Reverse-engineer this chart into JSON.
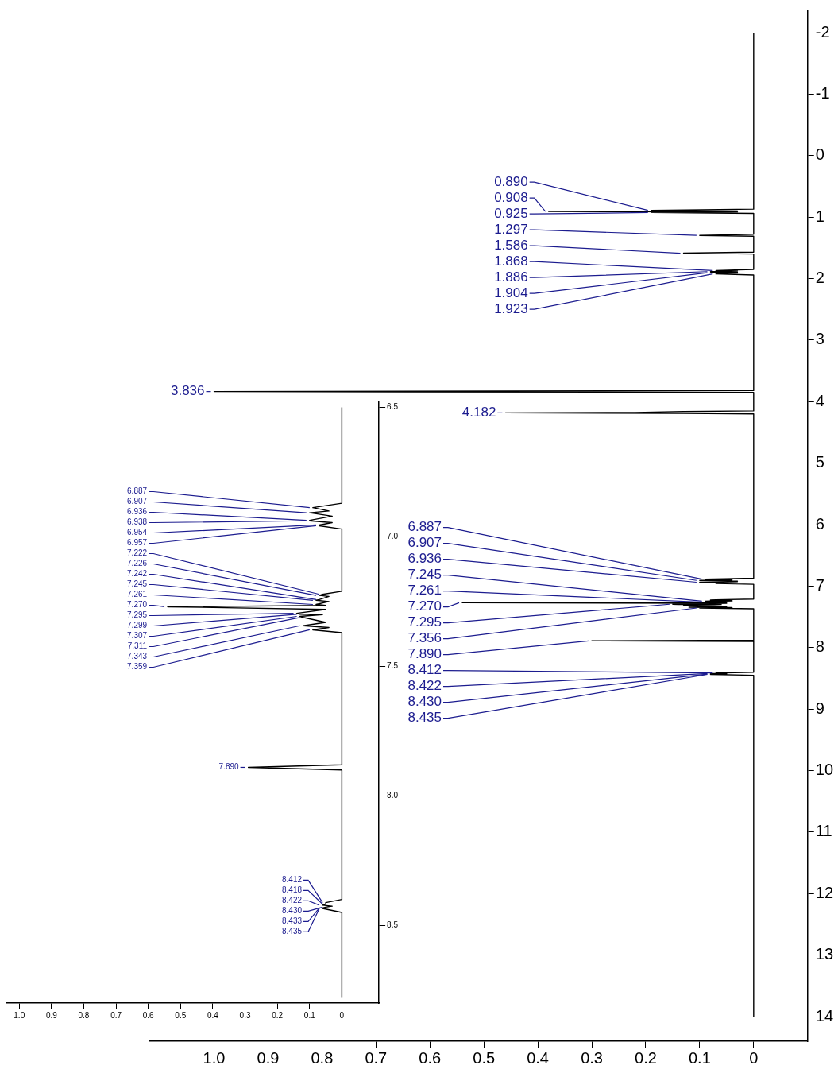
{
  "chart_data": [
    {
      "type": "line",
      "marker": "none",
      "ylim": [
        14.4,
        -2.35
      ],
      "yticks": [
        -2,
        -1,
        0,
        1,
        2,
        3,
        4,
        5,
        6,
        7,
        8,
        9,
        10,
        11,
        12,
        13,
        14
      ],
      "xlim": [
        1.12,
        -0.1
      ],
      "xticks": [
        0,
        0.1,
        0.2,
        0.3,
        0.4,
        0.5,
        0.6,
        0.7,
        0.8,
        0.9,
        {
          "value": 1,
          "label": "1.0"
        }
      ],
      "series": [
        {
          "color": "#000000",
          "values": [
            14,
            8.45,
            8.435,
            8.432,
            8.43,
            8.426,
            8.422,
            8.418,
            8.412,
            8.4,
            7.9,
            7.89,
            7.88,
            7.37,
            7.356,
            7.35,
            7.343,
            7.33,
            7.311,
            7.307,
            7.3,
            7.299,
            7.295,
            7.28,
            7.27,
            7.265,
            7.261,
            7.25,
            7.245,
            7.242,
            7.23,
            7.226,
            7.222,
            7.21,
            6.97,
            6.957,
            6.954,
            6.945,
            6.938,
            6.936,
            6.92,
            6.907,
            6.9,
            6.887,
            6.87,
            4.2,
            4.19,
            4.182,
            4.175,
            4.16,
            4.15,
            3.85,
            3.836,
            3.82,
            1.94,
            1.923,
            1.91,
            1.904,
            1.895,
            1.886,
            1.875,
            1.868,
            1.85,
            1.6,
            1.586,
            1.57,
            1.31,
            1.297,
            1.28,
            0.94,
            0.925,
            0.915,
            0.908,
            0.9,
            0.89,
            0.87,
            -2
          ],
          "x": [
            0,
            0,
            0.08,
            0.05,
            0.08,
            0.05,
            0.08,
            0.05,
            0.07,
            0,
            0,
            0.3,
            0,
            0,
            0.1,
            0.04,
            0.12,
            0.05,
            0.12,
            0.13,
            0.06,
            0.14,
            0.15,
            0.05,
            0.54,
            0.05,
            0.09,
            0.04,
            0.09,
            0.08,
            0.04,
            0.08,
            0.07,
            0,
            0,
            0.07,
            0.07,
            0.03,
            0.1,
            0.1,
            0.03,
            0.1,
            0.04,
            0.09,
            0,
            0,
            0.13,
            0.46,
            0.22,
            0.13,
            0,
            0,
            1,
            0,
            0,
            0.07,
            0.03,
            0.08,
            0.03,
            0.08,
            0.03,
            0.07,
            0,
            0,
            0.13,
            0,
            0,
            0.1,
            0,
            0,
            0.19,
            0.03,
            0.38,
            0.03,
            0.19,
            0,
            0
          ]
        }
      ],
      "annotations": [
        {
          "text": "8.435",
          "y": 8.435,
          "x": 0.08
        },
        {
          "text": "8.430",
          "y": 8.43,
          "x": 0.08
        },
        {
          "text": "8.422",
          "y": 8.422,
          "x": 0.08
        },
        {
          "text": "8.412",
          "y": 8.412,
          "x": 0.07
        },
        {
          "text": "7.890",
          "y": 7.89,
          "x": 0.3
        },
        {
          "text": "7.356",
          "y": 7.356,
          "x": 0.1
        },
        {
          "text": "7.295",
          "y": 7.295,
          "x": 0.15
        },
        {
          "text": "7.270",
          "y": 7.27,
          "x": 0.54
        },
        {
          "text": "7.261",
          "y": 7.261,
          "x": 0.09
        },
        {
          "text": "7.245",
          "y": 7.245,
          "x": 0.09
        },
        {
          "text": "6.936",
          "y": 6.936,
          "x": 0.1
        },
        {
          "text": "6.907",
          "y": 6.907,
          "x": 0.1
        },
        {
          "text": "6.887",
          "y": 6.887,
          "x": 0.09
        },
        {
          "text": "4.182",
          "y": 4.182,
          "x": 0.46
        },
        {
          "text": "3.836",
          "y": 3.836,
          "x": 1
        },
        {
          "text": "1.923",
          "y": 1.923,
          "x": 0.07
        },
        {
          "text": "1.904",
          "y": 1.904,
          "x": 0.08
        },
        {
          "text": "1.886",
          "y": 1.886,
          "x": 0.08
        },
        {
          "text": "1.868",
          "y": 1.868,
          "x": 0.07
        },
        {
          "text": "1.586",
          "y": 1.586,
          "x": 0.13
        },
        {
          "text": "1.297",
          "y": 1.297,
          "x": 0.1
        },
        {
          "text": "0.925",
          "y": 0.925,
          "x": 0.19
        },
        {
          "text": "0.908",
          "y": 0.908,
          "x": 0.38
        },
        {
          "text": "0.890",
          "y": 0.89,
          "x": 0.19
        }
      ]
    },
    {
      "type": "line",
      "marker": "none",
      "ylim": [
        8.8,
        6.48
      ],
      "yticks": [
        6.5,
        {
          "value": 7,
          "label": "7.0"
        },
        7.5,
        {
          "value": 8,
          "label": "8.0"
        },
        8.5
      ],
      "xlim": [
        1.04,
        -0.115
      ],
      "xticks": [
        0,
        0.1,
        0.2,
        0.3,
        0.4,
        0.5,
        0.6,
        0.7,
        0.8,
        0.9,
        {
          "value": 1,
          "label": "1.0"
        }
      ],
      "series": [
        {
          "color": "#000000",
          "values": [
            8.78,
            8.45,
            8.435,
            8.433,
            8.43,
            8.426,
            8.422,
            8.418,
            8.412,
            8.4,
            7.9,
            7.89,
            7.88,
            7.37,
            7.359,
            7.35,
            7.343,
            7.33,
            7.311,
            7.307,
            7.3,
            7.299,
            7.295,
            7.28,
            7.27,
            7.265,
            7.261,
            7.25,
            7.245,
            7.242,
            7.23,
            7.226,
            7.222,
            7.21,
            6.97,
            6.957,
            6.954,
            6.945,
            6.938,
            6.936,
            6.92,
            6.907,
            6.9,
            6.887,
            6.87,
            6.5
          ],
          "x": [
            0,
            0,
            0.06,
            0.06,
            0.05,
            0.03,
            0.06,
            0.05,
            0.05,
            0,
            0,
            0.29,
            0,
            0,
            0.09,
            0.04,
            0.12,
            0.05,
            0.12,
            0.13,
            0.06,
            0.13,
            0.14,
            0.05,
            0.54,
            0.05,
            0.08,
            0.04,
            0.08,
            0.07,
            0.04,
            0.07,
            0.06,
            0,
            0,
            0.07,
            0.07,
            0.03,
            0.1,
            0.1,
            0.03,
            0.1,
            0.04,
            0.09,
            0,
            0
          ]
        }
      ],
      "annotations": [
        {
          "text": "8.435",
          "y": 8.435,
          "x": 0.06
        },
        {
          "text": "8.433",
          "y": 8.433,
          "x": 0.06
        },
        {
          "text": "8.430",
          "y": 8.43,
          "x": 0.05
        },
        {
          "text": "8.422",
          "y": 8.422,
          "x": 0.06
        },
        {
          "text": "8.418",
          "y": 8.418,
          "x": 0.05
        },
        {
          "text": "8.412",
          "y": 8.412,
          "x": 0.05
        },
        {
          "text": "7.890",
          "y": 7.89,
          "x": 0.29
        },
        {
          "text": "7.359",
          "y": 7.359,
          "x": 0.09
        },
        {
          "text": "7.343",
          "y": 7.343,
          "x": 0.12
        },
        {
          "text": "7.311",
          "y": 7.311,
          "x": 0.12
        },
        {
          "text": "7.307",
          "y": 7.307,
          "x": 0.13
        },
        {
          "text": "7.299",
          "y": 7.299,
          "x": 0.13
        },
        {
          "text": "7.295",
          "y": 7.295,
          "x": 0.14
        },
        {
          "text": "7.270",
          "y": 7.27,
          "x": 0.54
        },
        {
          "text": "7.261",
          "y": 7.261,
          "x": 0.08
        },
        {
          "text": "7.245",
          "y": 7.245,
          "x": 0.08
        },
        {
          "text": "7.242",
          "y": 7.242,
          "x": 0.07
        },
        {
          "text": "7.226",
          "y": 7.226,
          "x": 0.07
        },
        {
          "text": "7.222",
          "y": 7.222,
          "x": 0.06
        },
        {
          "text": "6.957",
          "y": 6.957,
          "x": 0.07
        },
        {
          "text": "6.954",
          "y": 6.954,
          "x": 0.07
        },
        {
          "text": "6.938",
          "y": 6.938,
          "x": 0.1
        },
        {
          "text": "6.936",
          "y": 6.936,
          "x": 0.1
        },
        {
          "text": "6.907",
          "y": 6.907,
          "x": 0.1
        },
        {
          "text": "6.887",
          "y": 6.887,
          "x": 0.09
        }
      ]
    }
  ]
}
